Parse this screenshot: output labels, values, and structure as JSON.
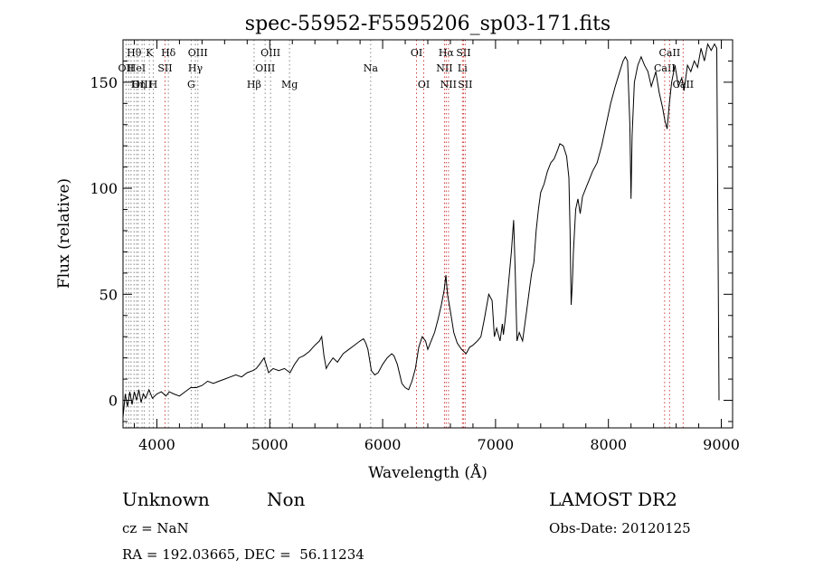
{
  "chart_data": {
    "type": "line",
    "title": "spec-55952-F5595206_sp03-171.fits",
    "xlabel": "Wavelength (Å)",
    "ylabel": "Flux (relative)",
    "xlim": [
      3700,
      9100
    ],
    "ylim": [
      -13,
      170
    ],
    "xticks": [
      4000,
      5000,
      6000,
      7000,
      8000,
      9000
    ],
    "yticks": [
      0,
      50,
      100,
      150
    ],
    "grid": false,
    "series": [
      {
        "values": [
          [
            3700,
            -8
          ],
          [
            3720,
            3
          ],
          [
            3740,
            -3
          ],
          [
            3760,
            4
          ],
          [
            3780,
            -2
          ],
          [
            3800,
            4
          ],
          [
            3820,
            0
          ],
          [
            3840,
            5
          ],
          [
            3860,
            -1
          ],
          [
            3880,
            3
          ],
          [
            3900,
            1
          ],
          [
            3930,
            5
          ],
          [
            3960,
            1
          ],
          [
            4000,
            3
          ],
          [
            4040,
            4
          ],
          [
            4080,
            2
          ],
          [
            4110,
            4
          ],
          [
            4150,
            3
          ],
          [
            4200,
            2
          ],
          [
            4250,
            4
          ],
          [
            4300,
            6
          ],
          [
            4350,
            6
          ],
          [
            4400,
            7
          ],
          [
            4450,
            9
          ],
          [
            4500,
            8
          ],
          [
            4550,
            9
          ],
          [
            4600,
            10
          ],
          [
            4650,
            11
          ],
          [
            4700,
            12
          ],
          [
            4750,
            11
          ],
          [
            4800,
            13
          ],
          [
            4850,
            14
          ],
          [
            4880,
            15
          ],
          [
            4910,
            17
          ],
          [
            4950,
            20
          ],
          [
            4990,
            13
          ],
          [
            5030,
            15
          ],
          [
            5080,
            14
          ],
          [
            5130,
            15
          ],
          [
            5180,
            13
          ],
          [
            5220,
            17
          ],
          [
            5260,
            20
          ],
          [
            5300,
            21
          ],
          [
            5350,
            23
          ],
          [
            5400,
            26
          ],
          [
            5440,
            28
          ],
          [
            5460,
            30
          ],
          [
            5480,
            21
          ],
          [
            5500,
            15
          ],
          [
            5520,
            17
          ],
          [
            5560,
            20
          ],
          [
            5600,
            18
          ],
          [
            5650,
            22
          ],
          [
            5700,
            24
          ],
          [
            5750,
            26
          ],
          [
            5800,
            28
          ],
          [
            5830,
            29
          ],
          [
            5850,
            27
          ],
          [
            5870,
            24
          ],
          [
            5900,
            14
          ],
          [
            5930,
            12
          ],
          [
            5960,
            13
          ],
          [
            6000,
            17
          ],
          [
            6040,
            20
          ],
          [
            6080,
            22
          ],
          [
            6100,
            21
          ],
          [
            6130,
            17
          ],
          [
            6170,
            8
          ],
          [
            6200,
            6
          ],
          [
            6230,
            5
          ],
          [
            6260,
            9
          ],
          [
            6290,
            15
          ],
          [
            6320,
            25
          ],
          [
            6350,
            30
          ],
          [
            6380,
            28
          ],
          [
            6400,
            24
          ],
          [
            6430,
            28
          ],
          [
            6460,
            32
          ],
          [
            6490,
            38
          ],
          [
            6520,
            45
          ],
          [
            6545,
            52
          ],
          [
            6560,
            59
          ],
          [
            6575,
            50
          ],
          [
            6600,
            42
          ],
          [
            6630,
            32
          ],
          [
            6660,
            27
          ],
          [
            6700,
            24
          ],
          [
            6740,
            22
          ],
          [
            6770,
            25
          ],
          [
            6800,
            26
          ],
          [
            6840,
            28
          ],
          [
            6870,
            30
          ],
          [
            6900,
            38
          ],
          [
            6940,
            50
          ],
          [
            6970,
            47
          ],
          [
            6990,
            30
          ],
          [
            7010,
            34
          ],
          [
            7040,
            28
          ],
          [
            7060,
            36
          ],
          [
            7070,
            31
          ],
          [
            7090,
            40
          ],
          [
            7110,
            52
          ],
          [
            7140,
            70
          ],
          [
            7160,
            85
          ],
          [
            7175,
            60
          ],
          [
            7190,
            28
          ],
          [
            7210,
            32
          ],
          [
            7240,
            28
          ],
          [
            7270,
            40
          ],
          [
            7300,
            52
          ],
          [
            7320,
            60
          ],
          [
            7340,
            65
          ],
          [
            7360,
            80
          ],
          [
            7380,
            90
          ],
          [
            7400,
            98
          ],
          [
            7430,
            102
          ],
          [
            7460,
            108
          ],
          [
            7490,
            112
          ],
          [
            7520,
            114
          ],
          [
            7550,
            118
          ],
          [
            7570,
            121
          ],
          [
            7600,
            120
          ],
          [
            7630,
            115
          ],
          [
            7650,
            105
          ],
          [
            7660,
            80
          ],
          [
            7670,
            45
          ],
          [
            7680,
            55
          ],
          [
            7690,
            70
          ],
          [
            7710,
            90
          ],
          [
            7730,
            95
          ],
          [
            7750,
            88
          ],
          [
            7770,
            96
          ],
          [
            7800,
            100
          ],
          [
            7830,
            104
          ],
          [
            7860,
            108
          ],
          [
            7900,
            112
          ],
          [
            7940,
            120
          ],
          [
            7980,
            130
          ],
          [
            8020,
            140
          ],
          [
            8060,
            148
          ],
          [
            8100,
            155
          ],
          [
            8130,
            160
          ],
          [
            8150,
            162
          ],
          [
            8170,
            160
          ],
          [
            8190,
            130
          ],
          [
            8200,
            95
          ],
          [
            8210,
            125
          ],
          [
            8230,
            150
          ],
          [
            8260,
            158
          ],
          [
            8290,
            162
          ],
          [
            8320,
            158
          ],
          [
            8350,
            155
          ],
          [
            8380,
            148
          ],
          [
            8420,
            155
          ],
          [
            8450,
            145
          ],
          [
            8480,
            138
          ],
          [
            8500,
            132
          ],
          [
            8520,
            128
          ],
          [
            8540,
            140
          ],
          [
            8560,
            150
          ],
          [
            8590,
            158
          ],
          [
            8620,
            148
          ],
          [
            8650,
            152
          ],
          [
            8670,
            146
          ],
          [
            8700,
            158
          ],
          [
            8730,
            155
          ],
          [
            8760,
            160
          ],
          [
            8790,
            157
          ],
          [
            8820,
            166
          ],
          [
            8850,
            160
          ],
          [
            8880,
            168
          ],
          [
            8910,
            165
          ],
          [
            8940,
            168
          ],
          [
            8960,
            166
          ],
          [
            8980,
            0
          ]
        ]
      }
    ],
    "vlines": [
      {
        "x": 3727,
        "label": "OII",
        "row": 1
      },
      {
        "x": 3750,
        "label": "",
        "row": 0
      },
      {
        "x": 3771,
        "label": "",
        "row": 0
      },
      {
        "x": 3798,
        "label": "Hθ",
        "row": 0
      },
      {
        "x": 3820,
        "label": "HeI",
        "row": 1
      },
      {
        "x": 3835,
        "label": "Hη",
        "row": 2
      },
      {
        "x": 3869,
        "label": "OIII",
        "row": 2
      },
      {
        "x": 3889,
        "label": "",
        "row": 0
      },
      {
        "x": 3934,
        "label": "K",
        "row": 0
      },
      {
        "x": 3968,
        "label": "H",
        "row": 2
      },
      {
        "x": 4072,
        "label": "SII",
        "row": 1
      },
      {
        "x": 4102,
        "label": "Hδ",
        "row": 0
      },
      {
        "x": 4304,
        "label": "G",
        "row": 2
      },
      {
        "x": 4341,
        "label": "Hγ",
        "row": 1
      },
      {
        "x": 4363,
        "label": "OIII",
        "row": 0
      },
      {
        "x": 4861,
        "label": "Hβ",
        "row": 2
      },
      {
        "x": 4959,
        "label": "OIII",
        "row": 1
      },
      {
        "x": 5007,
        "label": "OIII",
        "row": 0
      },
      {
        "x": 5175,
        "label": "Mg",
        "row": 2
      },
      {
        "x": 5894,
        "label": "Na",
        "row": 1
      },
      {
        "x": 6300,
        "label": "OI",
        "row": 0
      },
      {
        "x": 6364,
        "label": "OI",
        "row": 2
      },
      {
        "x": 6548,
        "label": "NII",
        "row": 1
      },
      {
        "x": 6563,
        "label": "Hα",
        "row": 0
      },
      {
        "x": 6583,
        "label": "NII",
        "row": 2
      },
      {
        "x": 6707,
        "label": "Li",
        "row": 1
      },
      {
        "x": 6716,
        "label": "SII",
        "row": 0
      },
      {
        "x": 6731,
        "label": "SII",
        "row": 2
      },
      {
        "x": 8498,
        "label": "CaII",
        "row": 1
      },
      {
        "x": 8542,
        "label": "CaII",
        "row": 0
      },
      {
        "x": 8662,
        "label": "CaII",
        "row": 2
      }
    ]
  },
  "info": {
    "class": "Unknown",
    "subclass": "Non",
    "survey": "LAMOST DR2",
    "cz": "cz = NaN",
    "obs_date": "Obs-Date: 20120125",
    "coords": "RA = 192.03665, DEC =  56.11234"
  },
  "colors": {
    "spectrum": "#000000",
    "emission_line": "#d04040",
    "absorption_line": "#888888"
  }
}
